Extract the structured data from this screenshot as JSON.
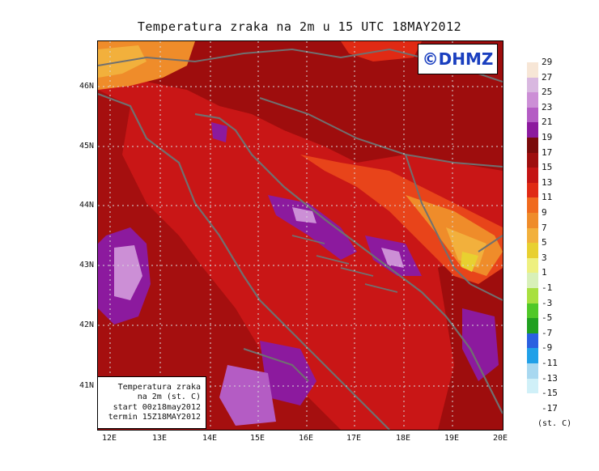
{
  "title": "Temperatura zraka na 2m u 15 UTC 18MAY2012",
  "logo": "©DHMZ",
  "infobox": {
    "line1": "Temperatura zraka",
    "line2": "na 2m (st. C)",
    "line3": "start 00z18may2012",
    "line4": "termin 15Z18MAY2012"
  },
  "lat_labels": [
    "46N",
    "45N",
    "44N",
    "43N",
    "42N",
    "41N"
  ],
  "lon_labels": [
    "12E",
    "13E",
    "14E",
    "15E",
    "16E",
    "17E",
    "18E",
    "19E",
    "20E"
  ],
  "legend": {
    "labels": [
      "29",
      "27",
      "25",
      "23",
      "21",
      "19",
      "17",
      "15",
      "13",
      "11",
      "9",
      "7",
      "5",
      "3",
      "1",
      "-1",
      "-3",
      "-5",
      "-7",
      "-9",
      "-11",
      "-13",
      "-15",
      "-17"
    ],
    "colors": [
      "#f7e6d6",
      "#d9b8e0",
      "#cc8fd6",
      "#b45cc4",
      "#8c1a9e",
      "#7a0a0a",
      "#9e0d0d",
      "#c41414",
      "#e02a14",
      "#f06a1e",
      "#ef8c2a",
      "#f2b03c",
      "#e8d030",
      "#eef080",
      "#d8f0b8",
      "#a8e040",
      "#50c828",
      "#20a020",
      "#2a60e0",
      "#20a0e8",
      "#a8d8f0",
      "#d0f0f8",
      "#ffffff"
    ],
    "units": "(st. C)"
  }
}
